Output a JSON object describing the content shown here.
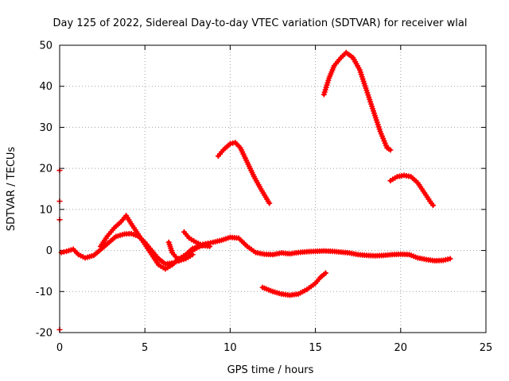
{
  "chart_data": {
    "type": "scatter",
    "title": "Day 125 of 2022, Sidereal Day-to-day VTEC variation (SDTVAR) for receiver wlal",
    "xlabel": "GPS time / hours",
    "ylabel": "SDTVAR / TECUs",
    "xlim": [
      0,
      25
    ],
    "ylim": [
      -20,
      50
    ],
    "xticks": [
      0,
      5,
      10,
      15,
      20,
      25
    ],
    "yticks": [
      -20,
      -10,
      0,
      10,
      20,
      30,
      40,
      50
    ],
    "grid": true,
    "color": "#ff0000",
    "series": [
      {
        "name": "arc-low-left",
        "points": [
          [
            0.1,
            -0.5
          ],
          [
            0.4,
            -0.2
          ],
          [
            0.8,
            0.3
          ],
          [
            1.1,
            -1.0
          ],
          [
            1.5,
            -1.8
          ],
          [
            2.0,
            -1.2
          ],
          [
            2.4,
            0.2
          ],
          [
            2.9,
            2.0
          ],
          [
            3.3,
            3.4
          ],
          [
            3.8,
            4.0
          ],
          [
            4.2,
            4.1
          ],
          [
            4.6,
            3.5
          ],
          [
            5.0,
            2.0
          ],
          [
            5.4,
            0.0
          ],
          [
            5.8,
            -2.0
          ],
          [
            6.2,
            -3.3
          ],
          [
            6.7,
            -3.0
          ],
          [
            7.2,
            -2.0
          ],
          [
            7.8,
            0.0
          ],
          [
            8.4,
            1.5
          ],
          [
            9.0,
            2.0
          ],
          [
            9.5,
            2.5
          ],
          [
            10.0,
            3.2
          ],
          [
            10.5,
            3.0
          ],
          [
            11.0,
            1.0
          ],
          [
            11.5,
            -0.5
          ],
          [
            12.0,
            -0.9
          ],
          [
            12.5,
            -1.0
          ],
          [
            13.0,
            -0.6
          ],
          [
            13.5,
            -0.8
          ],
          [
            14.0,
            -0.5
          ],
          [
            14.5,
            -0.3
          ],
          [
            15.0,
            -0.2
          ],
          [
            15.5,
            -0.1
          ],
          [
            16.0,
            -0.2
          ],
          [
            16.5,
            -0.4
          ],
          [
            17.0,
            -0.6
          ],
          [
            17.5,
            -1.0
          ],
          [
            18.0,
            -1.2
          ],
          [
            18.5,
            -1.3
          ],
          [
            19.0,
            -1.2
          ],
          [
            19.5,
            -1.0
          ],
          [
            20.0,
            -0.9
          ],
          [
            20.5,
            -1.0
          ],
          [
            21.0,
            -1.8
          ],
          [
            21.5,
            -2.2
          ],
          [
            22.0,
            -2.5
          ],
          [
            22.5,
            -2.4
          ],
          [
            22.9,
            -2.0
          ]
        ]
      },
      {
        "name": "arc-low-left-b",
        "points": [
          [
            2.4,
            1.0
          ],
          [
            2.8,
            3.5
          ],
          [
            3.2,
            5.5
          ],
          [
            3.6,
            7.0
          ],
          [
            3.9,
            8.5
          ],
          [
            4.2,
            6.5
          ],
          [
            4.6,
            4.0
          ],
          [
            5.0,
            1.5
          ],
          [
            5.4,
            -1.0
          ],
          [
            5.8,
            -3.5
          ],
          [
            6.2,
            -4.5
          ],
          [
            6.6,
            -3.5
          ],
          [
            7.0,
            -2.0
          ],
          [
            7.4,
            -1.0
          ],
          [
            7.8,
            0.5
          ],
          [
            8.2,
            1.0
          ],
          [
            8.6,
            1.5
          ]
        ]
      },
      {
        "name": "arc-short-a",
        "points": [
          [
            6.4,
            2.0
          ],
          [
            6.6,
            -0.5
          ],
          [
            7.0,
            -2.5
          ],
          [
            7.4,
            -2.0
          ],
          [
            7.8,
            -1.0
          ]
        ]
      },
      {
        "name": "arc-short-b",
        "points": [
          [
            7.3,
            4.5
          ],
          [
            7.6,
            3.0
          ],
          [
            8.0,
            2.0
          ],
          [
            8.4,
            1.2
          ],
          [
            8.8,
            1.0
          ]
        ]
      },
      {
        "name": "arc-rise-10",
        "points": [
          [
            9.3,
            23.0
          ],
          [
            9.6,
            24.5
          ],
          [
            10.0,
            26.0
          ],
          [
            10.3,
            26.3
          ],
          [
            10.6,
            25.0
          ],
          [
            11.0,
            21.5
          ],
          [
            11.4,
            18.0
          ],
          [
            11.8,
            15.0
          ],
          [
            12.3,
            11.5
          ]
        ]
      },
      {
        "name": "arc-dip-13",
        "points": [
          [
            11.9,
            -9.0
          ],
          [
            12.5,
            -10.0
          ],
          [
            13.0,
            -10.6
          ],
          [
            13.5,
            -10.9
          ],
          [
            14.0,
            -10.6
          ],
          [
            14.5,
            -9.5
          ],
          [
            15.0,
            -8.0
          ],
          [
            15.3,
            -6.5
          ],
          [
            15.6,
            -5.5
          ]
        ]
      },
      {
        "name": "arc-peak-17",
        "points": [
          [
            15.5,
            38.0
          ],
          [
            15.8,
            42.0
          ],
          [
            16.1,
            45.0
          ],
          [
            16.5,
            47.0
          ],
          [
            16.8,
            48.2
          ],
          [
            17.2,
            47.0
          ],
          [
            17.6,
            44.0
          ],
          [
            18.0,
            39.0
          ],
          [
            18.4,
            34.0
          ],
          [
            18.8,
            29.0
          ],
          [
            19.2,
            25.0
          ],
          [
            19.4,
            24.5
          ]
        ]
      },
      {
        "name": "arc-hump-20",
        "points": [
          [
            19.4,
            17.0
          ],
          [
            19.8,
            18.0
          ],
          [
            20.2,
            18.3
          ],
          [
            20.6,
            18.0
          ],
          [
            21.0,
            16.5
          ],
          [
            21.4,
            14.0
          ],
          [
            21.8,
            11.5
          ],
          [
            21.9,
            11.0
          ]
        ]
      },
      {
        "name": "isolated-points",
        "points": [
          [
            0.0,
            19.5
          ],
          [
            0.0,
            12.0
          ],
          [
            0.0,
            7.5
          ],
          [
            0.0,
            -19.3
          ]
        ]
      }
    ]
  }
}
